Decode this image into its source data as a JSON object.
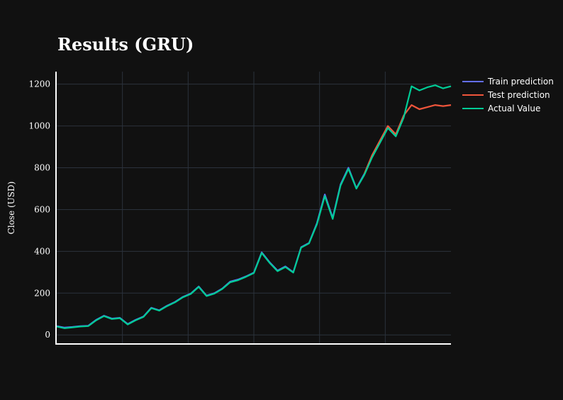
{
  "chart_data": {
    "type": "line",
    "title": "Results (GRU)",
    "xlabel": "",
    "ylabel": "Close (USD)",
    "ylim": [
      -40,
      1260
    ],
    "yticks": [
      0,
      200,
      400,
      600,
      800,
      1000,
      1200
    ],
    "grid": true,
    "legend_position": "top-right",
    "x_note": "sample index (no x tick labels shown)",
    "xlim": [
      0,
      1000
    ],
    "series": [
      {
        "name": "Train prediction",
        "color": "#636efa",
        "x": [
          0,
          20,
          40,
          60,
          80,
          100,
          120,
          140,
          160,
          180,
          200,
          220,
          240,
          260,
          280,
          300,
          320,
          340,
          360,
          380,
          400,
          420,
          440,
          460,
          480,
          500,
          520,
          540,
          560,
          580,
          600,
          620,
          640,
          660,
          680,
          700,
          720,
          740,
          760,
          780
        ],
        "y": [
          42,
          35,
          38,
          42,
          44,
          72,
          92,
          78,
          82,
          52,
          72,
          88,
          130,
          118,
          140,
          158,
          182,
          198,
          232,
          188,
          200,
          222,
          255,
          265,
          280,
          298,
          395,
          348,
          308,
          328,
          300,
          420,
          440,
          535,
          672,
          560,
          720,
          800,
          702,
          770
        ]
      },
      {
        "name": "Test prediction",
        "color": "#ef553b",
        "x": [
          780,
          800,
          820,
          840,
          860,
          880,
          900,
          920,
          940,
          960,
          980,
          1000
        ],
        "y": [
          770,
          860,
          930,
          1000,
          960,
          1050,
          1100,
          1080,
          1090,
          1100,
          1095,
          1100
        ]
      },
      {
        "name": "Actual Value",
        "color": "#00cc96",
        "x": [
          0,
          20,
          40,
          60,
          80,
          100,
          120,
          140,
          160,
          180,
          200,
          220,
          240,
          260,
          280,
          300,
          320,
          340,
          360,
          380,
          400,
          420,
          440,
          460,
          480,
          500,
          520,
          540,
          560,
          580,
          600,
          620,
          640,
          660,
          680,
          700,
          720,
          740,
          760,
          780,
          800,
          820,
          840,
          860,
          880,
          900,
          920,
          940,
          960,
          980,
          1000
        ],
        "y": [
          40,
          32,
          36,
          40,
          42,
          70,
          90,
          76,
          80,
          50,
          70,
          86,
          128,
          116,
          138,
          156,
          180,
          196,
          230,
          186,
          198,
          220,
          252,
          262,
          278,
          296,
          392,
          345,
          305,
          325,
          298,
          418,
          438,
          530,
          665,
          555,
          715,
          795,
          700,
          765,
          850,
          920,
          990,
          950,
          1040,
          1190,
          1170,
          1185,
          1195,
          1180,
          1190
        ]
      }
    ]
  }
}
